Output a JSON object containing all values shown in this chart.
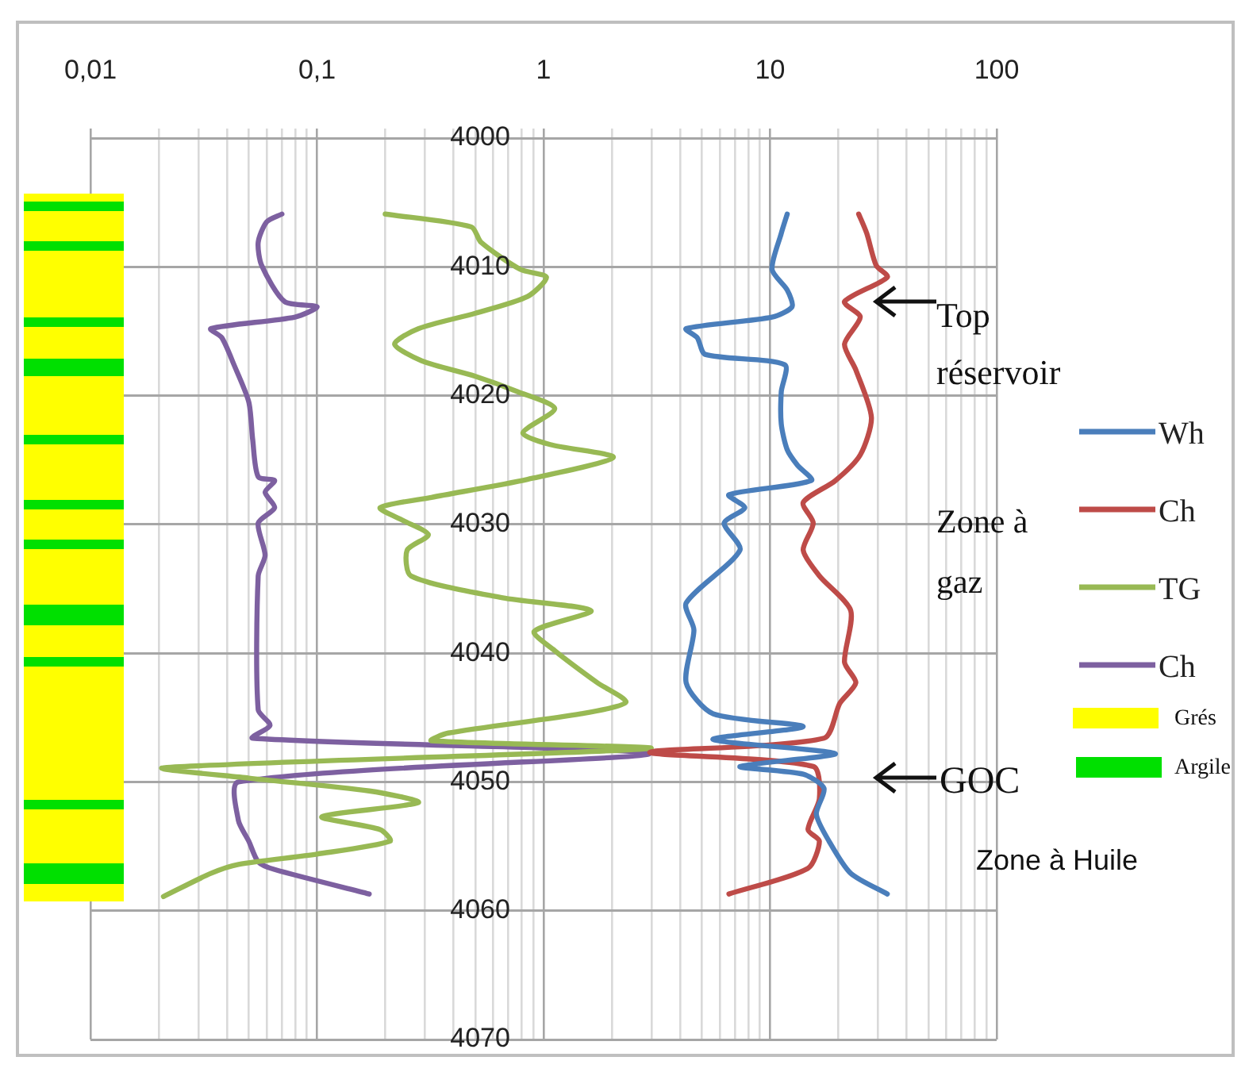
{
  "chart_data": {
    "type": "line",
    "log": "x",
    "grid": true,
    "legend": "right",
    "xlim": [
      0.01,
      100
    ],
    "ylim": [
      4070,
      4000
    ],
    "xticks": [
      {
        "value": 0.01,
        "label": "0,01"
      },
      {
        "value": 0.02,
        "label": null
      },
      {
        "value": 0.03,
        "label": null
      },
      {
        "value": 0.04,
        "label": null
      },
      {
        "value": 0.05,
        "label": null
      },
      {
        "value": 0.06,
        "label": null
      },
      {
        "value": 0.07,
        "label": null
      },
      {
        "value": 0.08,
        "label": null
      },
      {
        "value": 0.09,
        "label": null
      },
      {
        "value": 0.1,
        "label": "0,1"
      },
      {
        "value": 0.2,
        "label": null
      },
      {
        "value": 0.3,
        "label": null
      },
      {
        "value": 0.4,
        "label": null
      },
      {
        "value": 0.5,
        "label": null
      },
      {
        "value": 0.6,
        "label": null
      },
      {
        "value": 0.7,
        "label": null
      },
      {
        "value": 0.8,
        "label": null
      },
      {
        "value": 0.9,
        "label": null
      },
      1,
      {
        "value": 2,
        "label": null
      },
      {
        "value": 3,
        "label": null
      },
      {
        "value": 4,
        "label": null
      },
      {
        "value": 5,
        "label": null
      },
      {
        "value": 6,
        "label": null
      },
      {
        "value": 7,
        "label": null
      },
      {
        "value": 8,
        "label": null
      },
      {
        "value": 9,
        "label": null
      },
      10,
      {
        "value": 20,
        "label": null
      },
      {
        "value": 30,
        "label": null
      },
      {
        "value": 40,
        "label": null
      },
      {
        "value": 50,
        "label": null
      },
      {
        "value": 60,
        "label": null
      },
      {
        "value": 70,
        "label": null
      },
      {
        "value": 80,
        "label": null
      },
      {
        "value": 90,
        "label": null
      },
      100
    ],
    "yticks": [
      4000,
      4010,
      4020,
      4030,
      4040,
      4050,
      4060,
      4070
    ],
    "series": [
      {
        "name": "Wh",
        "color": "#4a7ebb",
        "x": [
          11.9,
          11.2,
          10.2,
          11.9,
          12.5,
          10.2,
          4.26,
          4.77,
          5.17,
          11.6,
          11.2,
          11.2,
          11.9,
          13.2,
          15.2,
          6.58,
          7.73,
          6.27,
          7.36,
          4.26,
          4.61,
          4.26,
          5.6,
          14.0,
          5.6,
          19.4,
          7.36,
          14.0,
          17.3,
          16.0,
          18.2,
          22.7,
          32.9
        ],
        "values": [
          4005.9,
          4007.4,
          4010.2,
          4011.8,
          4013.1,
          4013.9,
          4014.8,
          4015.5,
          4016.8,
          4017.6,
          4019.7,
          4022.2,
          4024.2,
          4025.4,
          4026.6,
          4027.7,
          4028.7,
          4029.9,
          4032.0,
          4036.1,
          4038.2,
          4042.3,
          4044.7,
          4045.7,
          4046.7,
          4047.8,
          4048.8,
          4049.4,
          4050.5,
          4052.5,
          4054.6,
          4057.1,
          4058.7
        ]
      },
      {
        "name": "Ch",
        "color": "#be4b48",
        "x": [
          24.6,
          26.7,
          29.4,
          32.9,
          21.3,
          25.0,
          21.3,
          23.9,
          28.0,
          25.0,
          19.4,
          14.0,
          15.5,
          14.0,
          16.5,
          22.7,
          21.3,
          23.9,
          20.3,
          17.3,
          2.94,
          15.5,
          16.5,
          14.7,
          16.5,
          14.7,
          6.58
        ],
        "values": [
          4005.9,
          4007.4,
          4009.9,
          4010.8,
          4012.7,
          4013.9,
          4016.0,
          4018.0,
          4021.7,
          4024.6,
          4026.6,
          4028.3,
          4029.9,
          4032.0,
          4034.0,
          4036.7,
          4040.7,
          4042.3,
          4043.9,
          4046.6,
          4047.7,
          4048.8,
          4051.3,
          4053.7,
          4054.6,
          4056.7,
          4058.7
        ]
      },
      {
        "name": "TG",
        "color": "#98b954",
        "x": [
          0.2,
          0.48,
          0.53,
          0.79,
          1.03,
          0.85,
          0.5,
          0.28,
          0.22,
          0.29,
          0.5,
          0.77,
          1.12,
          0.81,
          1.07,
          2.03,
          0.85,
          0.32,
          0.19,
          0.24,
          0.31,
          0.25,
          0.26,
          0.66,
          1.62,
          0.91,
          1.12,
          1.73,
          2.31,
          1.47,
          0.38,
          0.32,
          2.94,
          0.021,
          0.05,
          0.17,
          0.28,
          0.105,
          0.19,
          0.21,
          0.1,
          0.045,
          0.034,
          0.021
        ],
        "values": [
          4005.9,
          4006.9,
          4008.1,
          4010.2,
          4010.8,
          4012.3,
          4013.6,
          4014.8,
          4016.0,
          4017.3,
          4018.5,
          4019.7,
          4021.0,
          4022.9,
          4023.8,
          4024.8,
          4026.5,
          4027.9,
          4028.7,
          4029.7,
          4030.8,
          4032.0,
          4034.0,
          4035.7,
          4036.7,
          4038.3,
          4039.8,
          4042.3,
          4043.8,
          4044.7,
          4046.2,
          4046.8,
          4047.4,
          4048.9,
          4049.7,
          4050.7,
          4051.6,
          4052.7,
          4053.7,
          4054.6,
          4055.6,
          4056.4,
          4057.1,
          4058.9
        ]
      },
      {
        "name": "Ch",
        "color": "#7d60a0",
        "x": [
          0.07,
          0.06,
          0.055,
          0.057,
          0.072,
          0.1,
          0.08,
          0.034,
          0.038,
          0.043,
          0.05,
          0.052,
          0.055,
          0.065,
          0.059,
          0.065,
          0.055,
          0.059,
          0.055,
          0.055,
          0.062,
          0.052,
          2.94,
          0.045,
          0.045,
          0.05,
          0.055,
          0.065,
          0.17
        ],
        "values": [
          4005.9,
          4006.5,
          4008.1,
          4009.9,
          4012.7,
          4013.1,
          4013.9,
          4014.8,
          4015.5,
          4017.6,
          4020.5,
          4023.4,
          4026.3,
          4026.6,
          4027.5,
          4028.7,
          4029.9,
          4032.4,
          4034.0,
          4044.4,
          4045.6,
          4046.6,
          4047.8,
          4050.0,
          4053.0,
          4054.6,
          4056.2,
          4056.8,
          4058.7
        ]
      }
    ],
    "annotations": [
      "Top réservoir",
      "GOC",
      "Zone à gaz",
      "Zone à Huile",
      "Grés",
      "Argile"
    ]
  }
}
